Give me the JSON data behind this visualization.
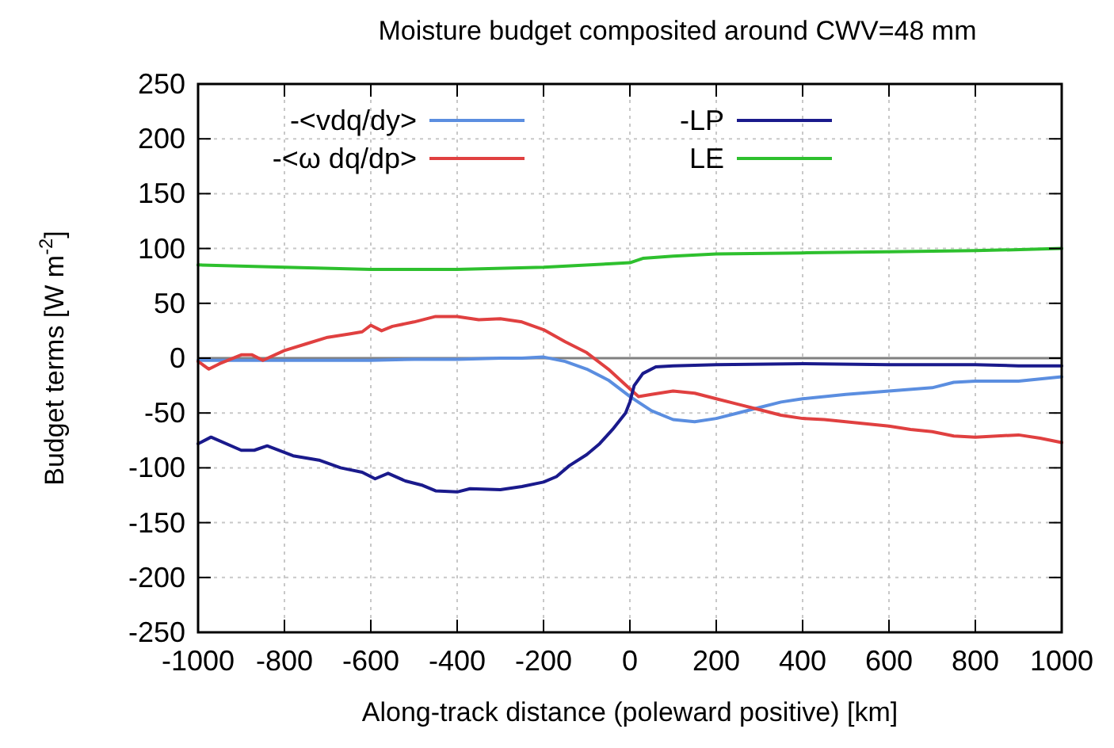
{
  "chart_data": {
    "type": "line",
    "title": "Moisture budget composited around CWV=48 mm",
    "xlabel": "Along-track distance (poleward positive) [km]",
    "ylabel": "Budget terms [W m$^{-2}$]",
    "xlim": [
      -1000,
      1000
    ],
    "xticks": [
      -1000,
      -800,
      -600,
      -400,
      -200,
      0,
      200,
      400,
      600,
      800,
      1000
    ],
    "ylim": [
      -250,
      250
    ],
    "yticks": [
      -250,
      -200,
      -150,
      -100,
      -50,
      0,
      50,
      100,
      150,
      200,
      250
    ],
    "grid": true,
    "legend": "top",
    "line_style": "solid",
    "ref_lines": [
      {
        "axis": "y",
        "value": 0,
        "label": null,
        "color": "#808080"
      }
    ],
    "series": [
      {
        "name": "-<vdq/dy>",
        "color": "#5b8ee0",
        "x": [
          -1000,
          -900,
          -800,
          -700,
          -600,
          -500,
          -400,
          -300,
          -250,
          -200,
          -150,
          -100,
          -50,
          0,
          50,
          100,
          150,
          200,
          250,
          300,
          350,
          400,
          500,
          600,
          700,
          750,
          800,
          900,
          1000
        ],
        "values": [
          -2,
          -2,
          -2,
          -2,
          -2,
          -1,
          -1,
          0,
          0,
          1,
          -3,
          -10,
          -20,
          -35,
          -48,
          -56,
          -58,
          -55,
          -50,
          -45,
          -40,
          -37,
          -33,
          -30,
          -27,
          -22,
          -21,
          -21,
          -17
        ]
      },
      {
        "name": "-<ω dq/dp>",
        "color": "#e04040",
        "x": [
          -1000,
          -975,
          -950,
          -900,
          -875,
          -850,
          -800,
          -750,
          -700,
          -650,
          -620,
          -600,
          -575,
          -550,
          -500,
          -450,
          -400,
          -350,
          -300,
          -250,
          -200,
          -150,
          -100,
          -50,
          0,
          20,
          50,
          100,
          150,
          200,
          250,
          300,
          350,
          400,
          450,
          500,
          600,
          650,
          700,
          750,
          800,
          900,
          950,
          1000
        ],
        "values": [
          -3,
          -10,
          -5,
          3,
          3,
          -2,
          7,
          13,
          19,
          22,
          24,
          30,
          25,
          29,
          33,
          38,
          38,
          35,
          36,
          33,
          26,
          15,
          5,
          -10,
          -28,
          -35,
          -33,
          -30,
          -32,
          -37,
          -42,
          -47,
          -52,
          -55,
          -56,
          -58,
          -62,
          -65,
          -67,
          -71,
          -72,
          -70,
          -73,
          -77
        ]
      },
      {
        "name": "-LP",
        "color": "#1a1a8c",
        "x": [
          -1000,
          -970,
          -900,
          -870,
          -840,
          -780,
          -720,
          -670,
          -620,
          -590,
          -560,
          -520,
          -480,
          -450,
          -400,
          -370,
          -300,
          -250,
          -200,
          -170,
          -140,
          -100,
          -70,
          -40,
          -10,
          0,
          10,
          30,
          60,
          100,
          200,
          400,
          600,
          800,
          900,
          1000
        ],
        "values": [
          -78,
          -72,
          -84,
          -84,
          -80,
          -89,
          -93,
          -100,
          -104,
          -110,
          -105,
          -112,
          -116,
          -121,
          -122,
          -119,
          -120,
          -117,
          -113,
          -108,
          -98,
          -88,
          -78,
          -65,
          -50,
          -40,
          -25,
          -14,
          -8,
          -7,
          -6,
          -5,
          -6,
          -6,
          -7,
          -7
        ]
      },
      {
        "name": "LE",
        "color": "#2ec02e",
        "x": [
          -1000,
          -800,
          -600,
          -400,
          -200,
          -50,
          0,
          30,
          100,
          200,
          400,
          600,
          800,
          1000
        ],
        "values": [
          85,
          83,
          81,
          81,
          83,
          86,
          87,
          91,
          93,
          95,
          96,
          97,
          98,
          100
        ]
      }
    ]
  }
}
